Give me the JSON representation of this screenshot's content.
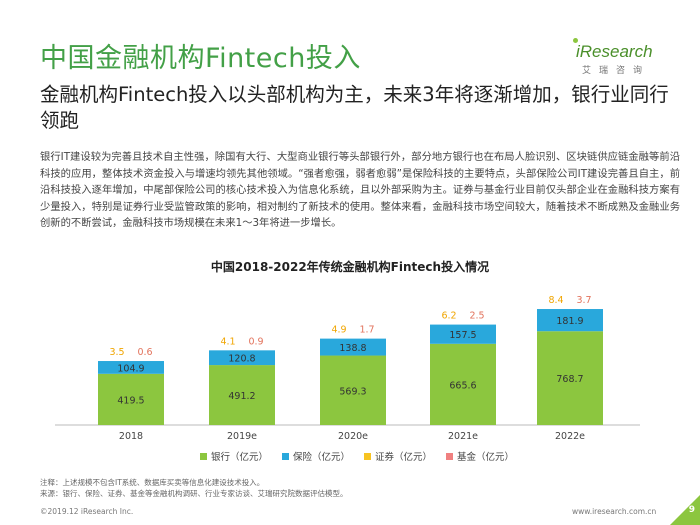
{
  "header": {
    "title": "中国金融机构Fintech投入",
    "logo_text": "iResearch",
    "logo_cn": "艾瑞咨询"
  },
  "subtitle": "金融机构Fintech投入以头部机构为主，未来3年将逐渐增加，银行业同行领跑",
  "paragraph": "银行IT建设较为完善且技术自主性强，除国有大行、大型商业银行等头部银行外，部分地方银行也在布局人脸识别、区块链供应链金融等前沿科技的应用，整体技术资金投入与增速均领先其他领域。“强者愈强，弱者愈弱”是保险科技的主要特点，头部保险公司IT建设完善且自主，前沿科技投入逐年增加，中尾部保险公司的核心技术投入为信息化系统，且以外部采购为主。证券与基金行业目前仅头部企业在金融科技方案有少量投入，特别是证券行业受监管政策的影响，相对制约了新技术的使用。整体来看，金融科技市场空间较大，随着技术不断成熟及金融业务创新的不断尝试，金融科技市场规模在未来1～3年将进一步增长。",
  "chart_data": {
    "type": "bar",
    "stacked": true,
    "title": "中国2018-2022年传统金融机构Fintech投入情况",
    "categories": [
      "2018",
      "2019e",
      "2020e",
      "2021e",
      "2022e"
    ],
    "series": [
      {
        "name": "银行（亿元）",
        "values": [
          419.5,
          491.2,
          569.3,
          665.6,
          768.7
        ],
        "color": "#8cc63f"
      },
      {
        "name": "保险（亿元）",
        "values": [
          104.9,
          120.8,
          138.8,
          157.5,
          181.9
        ],
        "color": "#29a8dc"
      },
      {
        "name": "证券（亿元）",
        "values": [
          3.5,
          4.1,
          4.9,
          6.2,
          8.4
        ],
        "color": "#f7c321"
      },
      {
        "name": "基金（亿元）",
        "values": [
          0.6,
          0.9,
          1.7,
          2.5,
          3.7
        ],
        "color": "#f08080"
      }
    ],
    "label_colors": {
      "银行（亿元）": "#333333",
      "保险（亿元）": "#333333",
      "证券（亿元）": "#f0a500",
      "基金（亿元）": "#e2725b"
    }
  },
  "notes": {
    "line1": "注释：上述规模不包含IT系统、数据库买卖等信息化建设技术投入。",
    "line2": "来源：银行、保险、证券、基金等金融机构调研、行业专家访谈、艾瑞研究院数据评估模型。"
  },
  "footer": {
    "copyright": "©2019.12 iResearch Inc.",
    "website": "www.iresearch.com.cn",
    "page": "9"
  }
}
